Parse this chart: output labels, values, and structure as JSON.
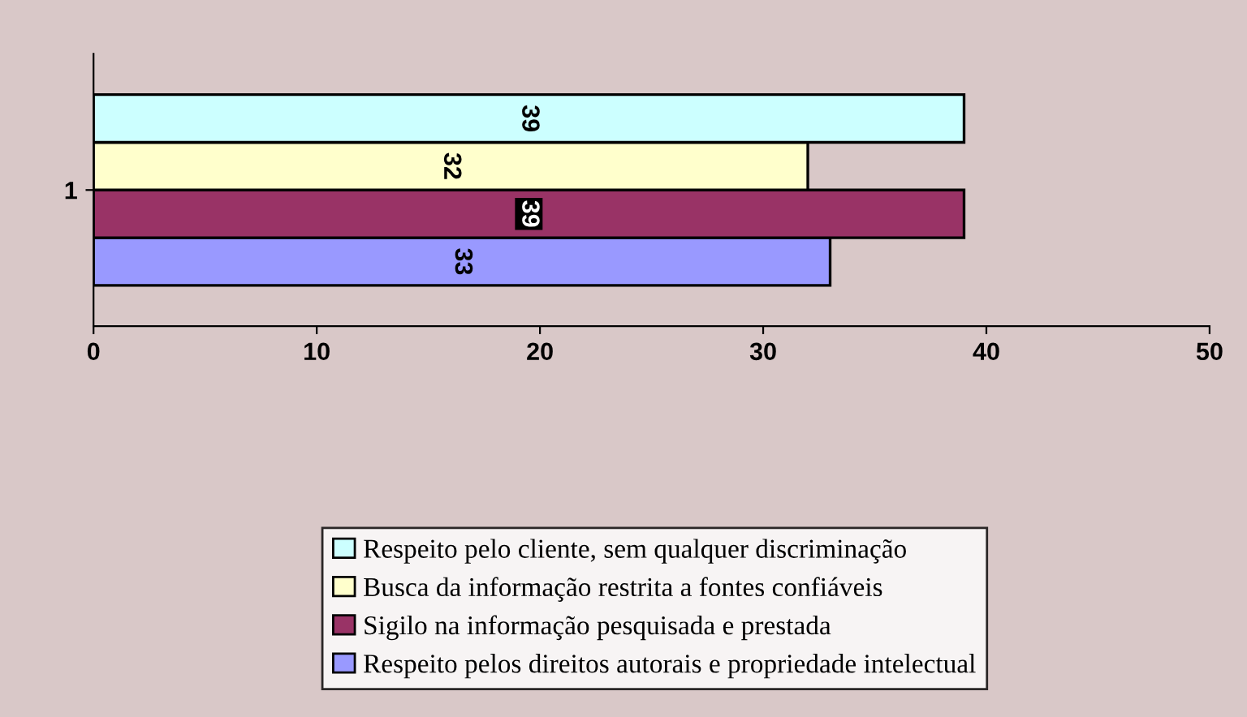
{
  "chart_data": {
    "type": "bar",
    "orientation": "horizontal",
    "categories": [
      "1"
    ],
    "series": [
      {
        "name": "Respeito pelos direitos autorais e propriedade intelectual",
        "color": "#9999ff",
        "values": [
          33
        ]
      },
      {
        "name": "Sigilo na informação pesquisada e prestada",
        "color": "#993366",
        "values": [
          39
        ]
      },
      {
        "name": "Busca da informação restrita a fontes confiáveis",
        "color": "#ffffcc",
        "values": [
          32
        ]
      },
      {
        "name": "Respeito pelo cliente, sem qualquer discriminação",
        "color": "#ccffff",
        "values": [
          39
        ]
      }
    ],
    "xlim": [
      0,
      50
    ],
    "xticks": [
      0,
      10,
      20,
      30,
      40,
      50
    ],
    "data_labels": true,
    "legend": "bottom",
    "grid": false
  }
}
